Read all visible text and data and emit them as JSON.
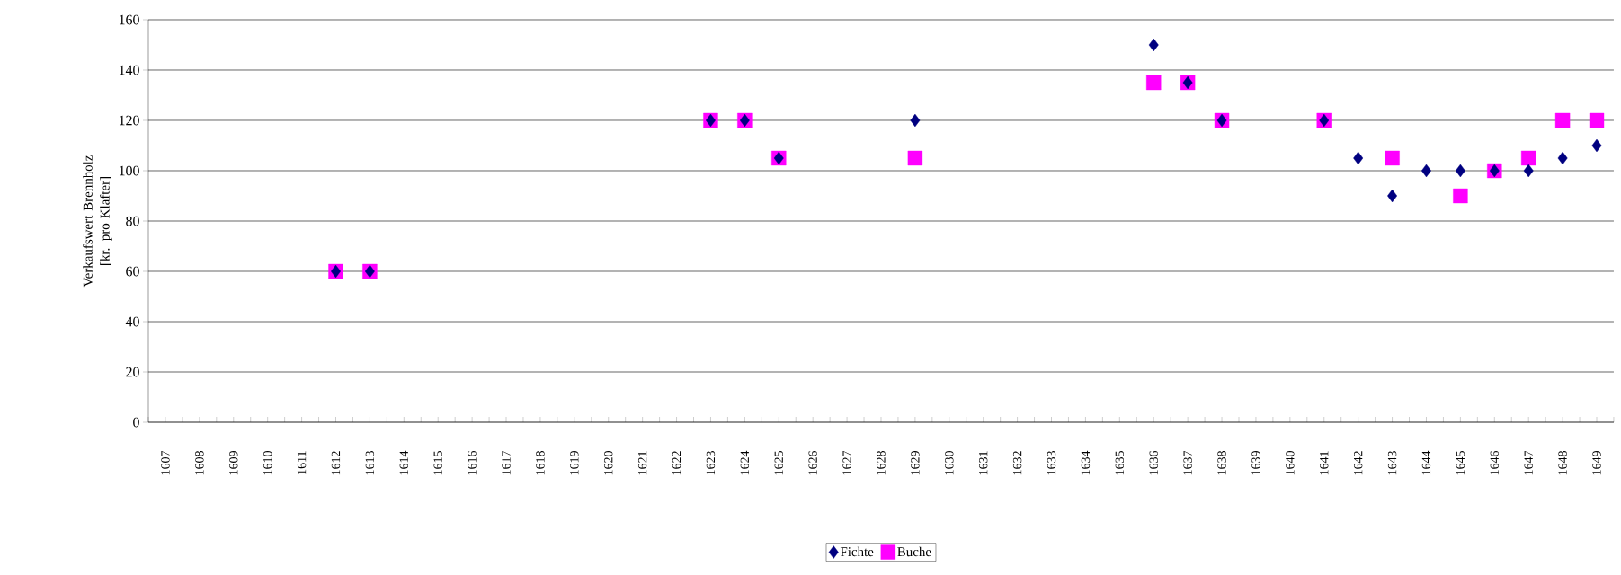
{
  "chart_data": {
    "type": "scatter",
    "ylabel": "Verkaufswert Brennholz [kr. pro Klafter]",
    "categories": [
      "1607",
      "1608",
      "1609",
      "1610",
      "1611",
      "1612",
      "1613",
      "1614",
      "1615",
      "1616",
      "1617",
      "1618",
      "1619",
      "1620",
      "1621",
      "1622",
      "1623",
      "1624",
      "1625",
      "1626",
      "1627",
      "1628",
      "1629",
      "1630",
      "1631",
      "1632",
      "1633",
      "1634",
      "1635",
      "1636",
      "1637",
      "1638",
      "1639",
      "1640",
      "1641",
      "1642",
      "1643",
      "1644",
      "1645",
      "1646",
      "1647",
      "1648",
      "1649"
    ],
    "series": [
      {
        "name": "Fichte",
        "color": "#000080",
        "marker": "diamond",
        "values": [
          null,
          null,
          null,
          null,
          null,
          60,
          60,
          null,
          null,
          null,
          null,
          null,
          null,
          null,
          null,
          null,
          120,
          120,
          105,
          null,
          null,
          null,
          120,
          null,
          null,
          null,
          null,
          null,
          null,
          150,
          135,
          120,
          null,
          null,
          120,
          105,
          90,
          100,
          100,
          100,
          100,
          105,
          110
        ]
      },
      {
        "name": "Buche",
        "color": "#ff00ff",
        "marker": "square",
        "values": [
          null,
          null,
          null,
          null,
          null,
          60,
          60,
          null,
          null,
          null,
          null,
          null,
          null,
          null,
          null,
          null,
          120,
          120,
          105,
          null,
          null,
          null,
          105,
          null,
          null,
          null,
          null,
          null,
          null,
          135,
          135,
          120,
          null,
          null,
          120,
          null,
          105,
          null,
          90,
          100,
          105,
          120,
          120
        ]
      }
    ],
    "ylim": [
      0,
      160
    ],
    "yticks": [
      0,
      20,
      40,
      60,
      80,
      100,
      120,
      140,
      160
    ],
    "grid": "y",
    "legend": "bottom"
  }
}
